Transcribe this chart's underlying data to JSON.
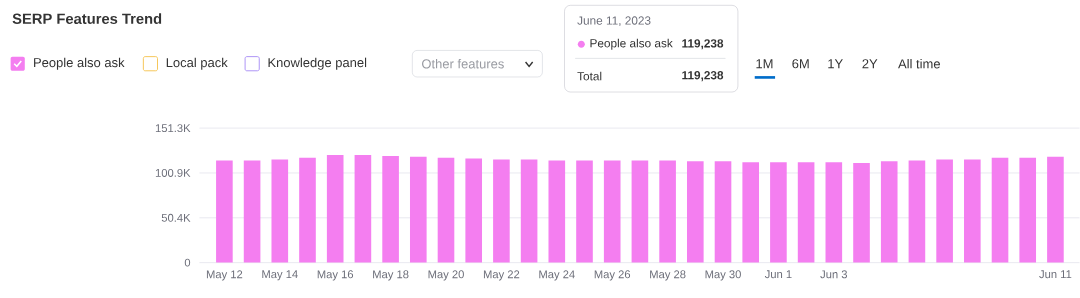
{
  "chart_data": {
    "type": "bar",
    "title": "SERP Features Trend",
    "categories": [
      "May 12",
      null,
      "May 14",
      null,
      "May 16",
      null,
      "May 18",
      null,
      "May 20",
      null,
      "May 22",
      null,
      "May 24",
      null,
      "May 26",
      null,
      "May 28",
      null,
      "May 30",
      null,
      "Jun 1",
      null,
      "Jun 3",
      null,
      null,
      null,
      null,
      null,
      null,
      null,
      "Jun 11"
    ],
    "series": [
      {
        "name": "People also ask",
        "color": "#f47ef0",
        "values": [
          115000,
          115000,
          116000,
          118000,
          121000,
          121000,
          120000,
          119000,
          118000,
          117000,
          116000,
          116000,
          115000,
          115000,
          115000,
          115000,
          115000,
          114000,
          114000,
          113000,
          113000,
          113000,
          113000,
          112000,
          114000,
          115000,
          116000,
          116000,
          118000,
          118000,
          119238
        ]
      },
      {
        "name": "Local pack",
        "color": "#f5c451",
        "values": [
          null,
          null,
          null,
          null,
          null,
          null,
          null,
          null,
          null,
          null,
          null,
          null,
          null,
          null,
          null,
          null,
          null,
          null,
          null,
          null,
          null,
          null,
          null,
          null,
          null,
          null,
          null,
          null,
          null,
          null,
          null
        ]
      },
      {
        "name": "Knowledge panel",
        "color": "#a98ef5",
        "values": [
          null,
          null,
          null,
          null,
          null,
          null,
          null,
          null,
          null,
          null,
          null,
          null,
          null,
          null,
          null,
          null,
          null,
          null,
          null,
          null,
          null,
          null,
          null,
          null,
          null,
          null,
          null,
          null,
          null,
          null,
          null
        ]
      }
    ],
    "ylim": [
      0,
      151300
    ],
    "yticks": [
      {
        "value": 0,
        "label": "0"
      },
      {
        "value": 50400,
        "label": "50.4K"
      },
      {
        "value": 100900,
        "label": "100.9K"
      },
      {
        "value": 151300,
        "label": "151.3K"
      }
    ],
    "grid": "y",
    "legend": "top left",
    "annotations": [
      "Other features",
      "1M",
      "6M",
      "1Y",
      "2Y",
      "All time",
      "June 11, 2023",
      "People also ask",
      "119,238",
      "Total",
      "119,238"
    ]
  }
}
